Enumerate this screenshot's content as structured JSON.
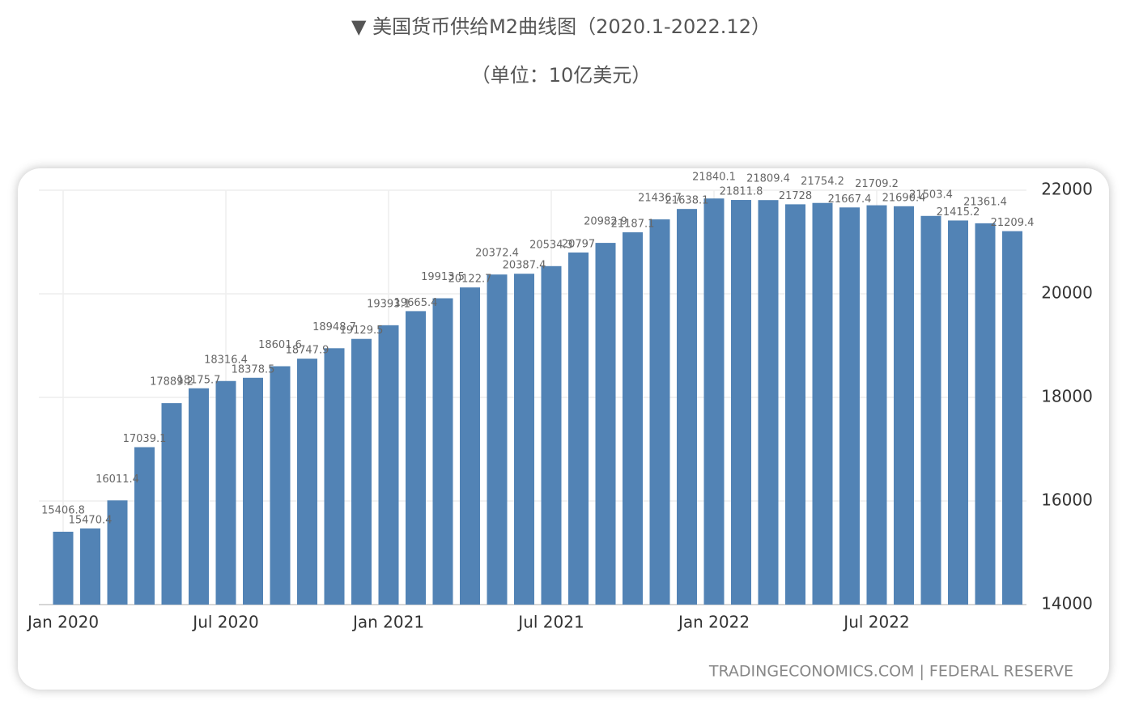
{
  "chart_data": {
    "type": "bar",
    "title": "▼ 美国货币供给M2曲线图（2020.1-2022.12）",
    "subtitle": "（单位：10亿美元）",
    "source": "TRADINGECONOMICS.COM | FEDERAL RESERVE",
    "categories": [
      "Jan 2020",
      null,
      null,
      null,
      null,
      null,
      "Jul 2020",
      null,
      null,
      null,
      null,
      null,
      "Jan 2021",
      null,
      null,
      null,
      null,
      null,
      "Jul 2021",
      null,
      null,
      null,
      null,
      null,
      "Jan 2022",
      null,
      null,
      null,
      null,
      null,
      "Jul 2022",
      null,
      null,
      null,
      null,
      null
    ],
    "values": [
      15406.8,
      15470.4,
      16011.4,
      17039.1,
      17889.2,
      18175.7,
      18316.4,
      18378.5,
      18601.6,
      18747.9,
      18948.7,
      19129.5,
      19393.1,
      19665.4,
      19913.5,
      20122.7,
      20372.4,
      20387.4,
      20534.3,
      20797,
      20982.9,
      21187.1,
      21436.7,
      21638.1,
      21840.1,
      21811.8,
      21809.4,
      21728,
      21754.2,
      21667.4,
      21709.2,
      21690.4,
      21503.4,
      21415.2,
      21361.4,
      21209.4
    ],
    "color": "#5283b5",
    "ylim": [
      14000,
      22000
    ],
    "yticks": [
      14000,
      16000,
      18000,
      20000,
      22000
    ],
    "y_axis_side": "right",
    "grid": true
  }
}
